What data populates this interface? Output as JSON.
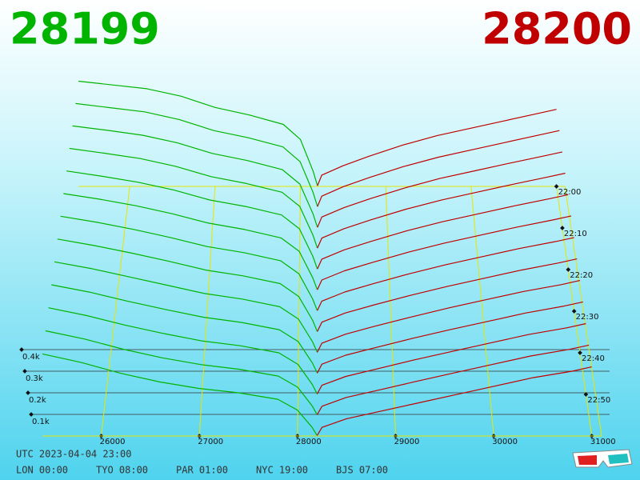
{
  "chart_data": {
    "type": "depth",
    "bid_price": 28199,
    "ask_price": 28200,
    "bid_color": "#00b400",
    "ask_color": "#c00000",
    "grid_color": "#e6e600",
    "xlim": [
      25400,
      31100
    ],
    "xticks": [
      26000,
      27000,
      28000,
      29000,
      30000,
      31000
    ],
    "yticks": [
      {
        "value": 100,
        "label": "0.1k"
      },
      {
        "value": 200,
        "label": "0.2k"
      },
      {
        "value": 300,
        "label": "0.3k"
      },
      {
        "value": 400,
        "label": "0.4k"
      }
    ],
    "tlim": [
      1320,
      1380
    ],
    "tticks": [
      {
        "value": 1320,
        "label": "22:00"
      },
      {
        "value": 1330,
        "label": "22:10"
      },
      {
        "value": 1340,
        "label": "22:20"
      },
      {
        "value": 1350,
        "label": "22:30"
      },
      {
        "value": 1360,
        "label": "22:40"
      },
      {
        "value": 1370,
        "label": "22:50"
      }
    ],
    "snapshot_times": [
      1320,
      1325,
      1330,
      1335,
      1340,
      1345,
      1350,
      1355,
      1360,
      1365,
      1370,
      1375,
      1380
    ],
    "bid_prices": [
      25400,
      25800,
      26200,
      26600,
      27000,
      27400,
      27800,
      28000,
      28150,
      28199
    ],
    "ask_prices": [
      28200,
      28250,
      28500,
      28800,
      29200,
      29600,
      30000,
      30400,
      30800,
      31000
    ],
    "bids": [
      [
        560,
        540,
        520,
        480,
        420,
        380,
        330,
        250,
        80,
        5
      ],
      [
        545,
        523,
        501,
        461,
        403,
        365,
        317,
        239,
        77,
        5
      ],
      [
        530,
        507,
        482,
        442,
        387,
        350,
        303,
        228,
        73,
        5
      ],
      [
        515,
        490,
        463,
        423,
        370,
        335,
        290,
        218,
        70,
        5
      ],
      [
        500,
        473,
        443,
        403,
        353,
        320,
        277,
        207,
        67,
        4
      ],
      [
        485,
        457,
        424,
        384,
        337,
        305,
        263,
        196,
        63,
        4
      ],
      [
        470,
        440,
        405,
        365,
        320,
        290,
        250,
        185,
        60,
        4
      ],
      [
        455,
        423,
        386,
        346,
        303,
        275,
        237,
        174,
        57,
        4
      ],
      [
        440,
        407,
        367,
        327,
        287,
        260,
        223,
        163,
        53,
        4
      ],
      [
        425,
        390,
        347,
        307,
        270,
        245,
        210,
        153,
        50,
        4
      ],
      [
        410,
        373,
        328,
        288,
        253,
        230,
        197,
        142,
        47,
        3
      ],
      [
        395,
        357,
        309,
        269,
        237,
        215,
        183,
        131,
        43,
        3
      ],
      [
        380,
        340,
        290,
        250,
        220,
        200,
        170,
        120,
        40,
        3
      ]
    ],
    "asks": [
      [
        3,
        60,
        110,
        160,
        220,
        270,
        310,
        350,
        390,
        410
      ],
      [
        3,
        58,
        108,
        156,
        214,
        263,
        303,
        343,
        383,
        403
      ],
      [
        3,
        57,
        105,
        152,
        208,
        257,
        297,
        337,
        375,
        395
      ],
      [
        3,
        55,
        103,
        148,
        203,
        250,
        290,
        330,
        368,
        388
      ],
      [
        3,
        53,
        100,
        143,
        197,
        243,
        283,
        323,
        360,
        380
      ],
      [
        3,
        52,
        98,
        139,
        191,
        237,
        277,
        317,
        353,
        373
      ],
      [
        3,
        50,
        95,
        135,
        185,
        230,
        270,
        310,
        345,
        365
      ],
      [
        2,
        48,
        93,
        131,
        179,
        223,
        263,
        303,
        338,
        358
      ],
      [
        2,
        47,
        90,
        127,
        173,
        217,
        257,
        297,
        330,
        350
      ],
      [
        2,
        45,
        88,
        123,
        168,
        210,
        250,
        290,
        323,
        343
      ],
      [
        2,
        43,
        85,
        118,
        162,
        203,
        243,
        283,
        315,
        335
      ],
      [
        2,
        42,
        83,
        114,
        156,
        197,
        237,
        277,
        308,
        328
      ],
      [
        2,
        40,
        80,
        110,
        150,
        190,
        230,
        270,
        300,
        320
      ]
    ],
    "utc": "UTC 2023-04-04 23:00",
    "clocks": [
      "LON 00:00",
      "TYO 08:00",
      "PAR 01:00",
      "NYC 19:00",
      "BJS 07:00"
    ]
  }
}
